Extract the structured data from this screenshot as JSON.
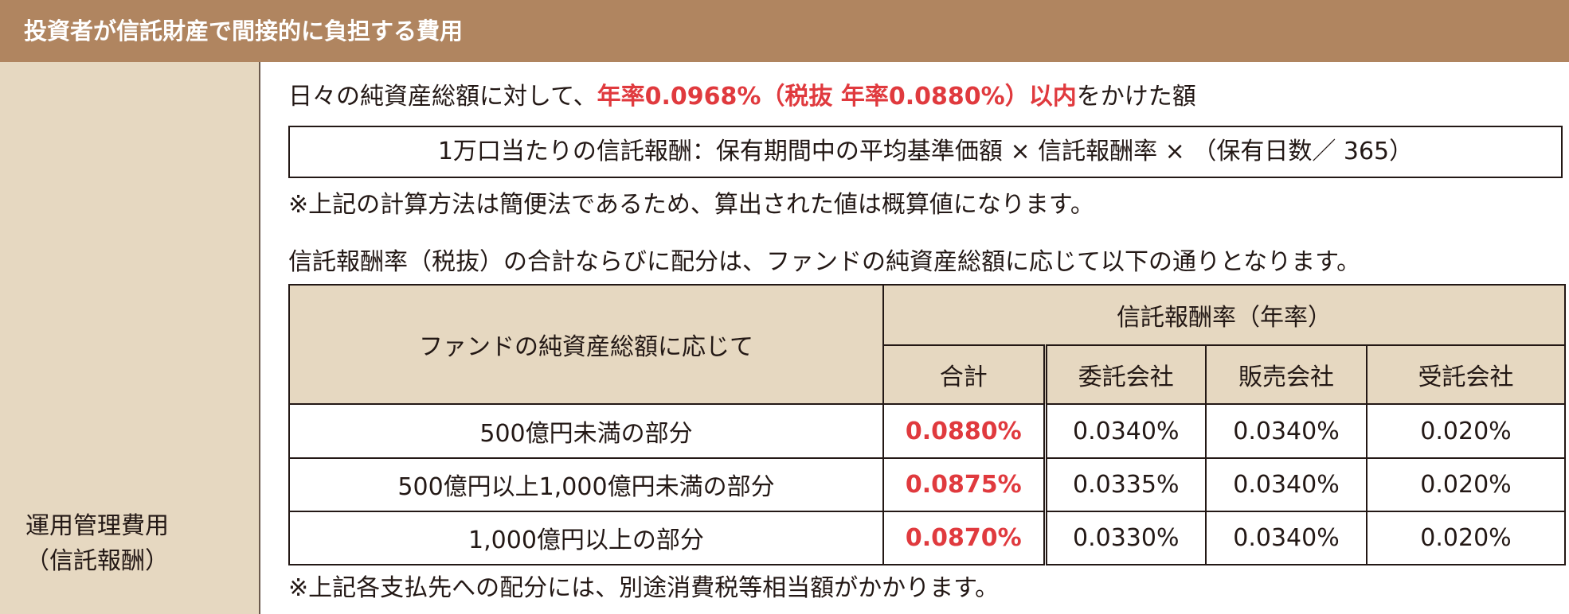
{
  "header": {
    "title": "投資者が信託財産で間接的に負担する費用"
  },
  "row_label": {
    "line1": "運用管理費用",
    "line2": "（信託報酬）"
  },
  "description": {
    "prefix": "日々の純資産総額に対して、",
    "highlight": "年率0.0968%（税抜 年率0.0880%）以内",
    "suffix": "をかけた額"
  },
  "formula": "1万口当たりの信託報酬：保有期間中の平均基準価額 × 信託報酬率 × （保有日数／ 365）",
  "note1": "※上記の計算方法は簡便法であるため、算出された値は概算値になります。",
  "intro2": "信託報酬率（税抜）の合計ならびに配分は、ファンドの純資産総額に応じて以下の通りとなります。",
  "table": {
    "col_header_left": "ファンドの純資産総額に応じて",
    "col_header_group": "信託報酬率（年率）",
    "sub_headers": [
      "合計",
      "委託会社",
      "販売会社",
      "受託会社"
    ],
    "rows": [
      {
        "tier": "500億円未満の部分",
        "total": "0.0880%",
        "itaku": "0.0340%",
        "hanbai": "0.0340%",
        "jutaku": "0.020%"
      },
      {
        "tier": "500億円以上1,000億円未満の部分",
        "total": "0.0875%",
        "itaku": "0.0335%",
        "hanbai": "0.0340%",
        "jutaku": "0.020%"
      },
      {
        "tier": "1,000億円以上の部分",
        "total": "0.0870%",
        "itaku": "0.0330%",
        "hanbai": "0.0340%",
        "jutaku": "0.020%"
      }
    ]
  },
  "note2": "※上記各支払先への配分には、別途消費税等相当額がかかります。",
  "colors": {
    "header_bg": "#b08560",
    "label_bg": "#e6d8c1",
    "highlight": "#e03a3e",
    "text": "#231815"
  }
}
